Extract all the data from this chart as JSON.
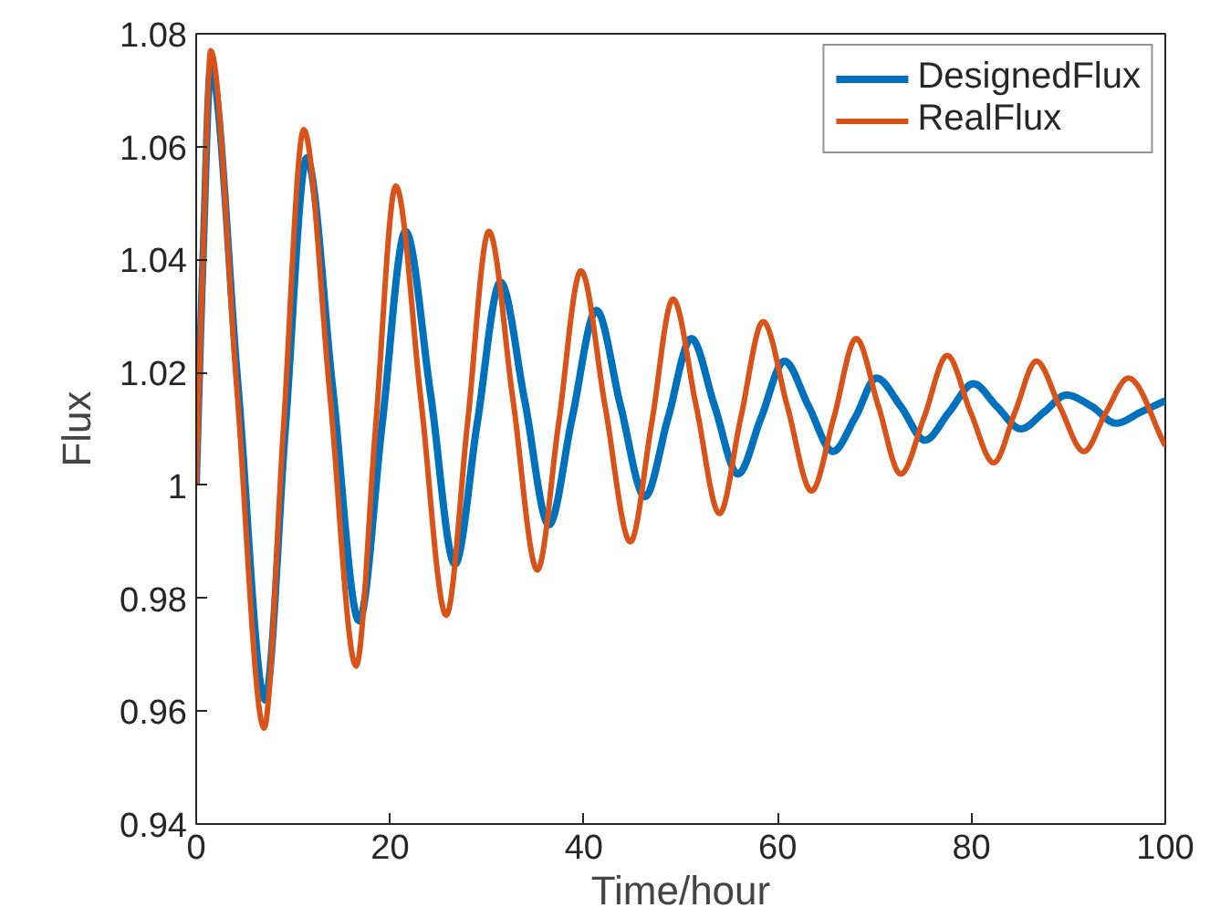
{
  "chart_data": {
    "type": "line",
    "xlabel": "Time/hour",
    "ylabel": "Flux",
    "xlim": [
      0,
      100
    ],
    "ylim": [
      0.94,
      1.08
    ],
    "xticks": [
      0,
      20,
      40,
      60,
      80,
      100
    ],
    "yticks": [
      0.94,
      0.96,
      0.98,
      {
        "value": 1.0,
        "label": "1"
      },
      1.02,
      1.04,
      1.06,
      1.08
    ],
    "grid": false,
    "legend": "top right",
    "marker": "none",
    "line_style": "solid",
    "series": [
      {
        "name": "DesignedFlux",
        "color": "#0072bd",
        "x": [
          0,
          0.7,
          1.5,
          4.3,
          7.1,
          9.2,
          11.4,
          14.1,
          16.8,
          19.2,
          21.6,
          24.2,
          26.7,
          29,
          31.4,
          33.9,
          36.4,
          38.8,
          41.3,
          43.8,
          46.3,
          48.7,
          51.1,
          53.5,
          55.9,
          58.3,
          60.7,
          63.2,
          65.7,
          68,
          70.2,
          72.7,
          75.2,
          77.7,
          80.2,
          82.6,
          85.1,
          87.5,
          89.8,
          92.4,
          94.9,
          97.5,
          100
        ],
        "values": [
          1.0,
          1.04,
          1.074,
          1.018,
          0.962,
          1.01,
          1.058,
          1.017,
          0.976,
          1.011,
          1.045,
          1.016,
          0.986,
          1.011,
          1.036,
          1.015,
          0.993,
          1.012,
          1.031,
          1.014,
          0.998,
          1.012,
          1.026,
          1.014,
          1.002,
          1.012,
          1.022,
          1.014,
          1.006,
          1.012,
          1.019,
          1.014,
          1.008,
          1.013,
          1.018,
          1.014,
          1.01,
          1.013,
          1.016,
          1.014,
          1.011,
          1.013,
          1.015
        ]
      },
      {
        "name": "RealFlux",
        "color": "#d95319",
        "x": [
          0,
          0.7,
          1.5,
          4.2,
          7.0,
          9.0,
          11.1,
          13.8,
          16.5,
          18.5,
          20.6,
          23.2,
          25.8,
          28,
          30.2,
          32.7,
          35.2,
          37.4,
          39.7,
          42.2,
          44.8,
          47,
          49.2,
          51.6,
          54.0,
          56.2,
          58.5,
          61,
          63.5,
          65.8,
          68.1,
          70.4,
          72.7,
          75.1,
          77.5,
          79.9,
          82.3,
          84.5,
          86.7,
          89.1,
          91.6,
          93.9,
          96.2,
          100
        ],
        "values": [
          1.0,
          1.04,
          1.077,
          1.017,
          0.957,
          1.01,
          1.063,
          1.016,
          0.968,
          1.01,
          1.053,
          1.015,
          0.977,
          1.011,
          1.045,
          1.015,
          0.985,
          1.011,
          1.038,
          1.014,
          0.99,
          1.011,
          1.033,
          1.014,
          0.995,
          1.012,
          1.029,
          1.014,
          0.999,
          1.012,
          1.026,
          1.014,
          1.002,
          1.012,
          1.023,
          1.013,
          1.004,
          1.013,
          1.022,
          1.014,
          1.006,
          1.013,
          1.019,
          1.007
        ]
      }
    ]
  }
}
